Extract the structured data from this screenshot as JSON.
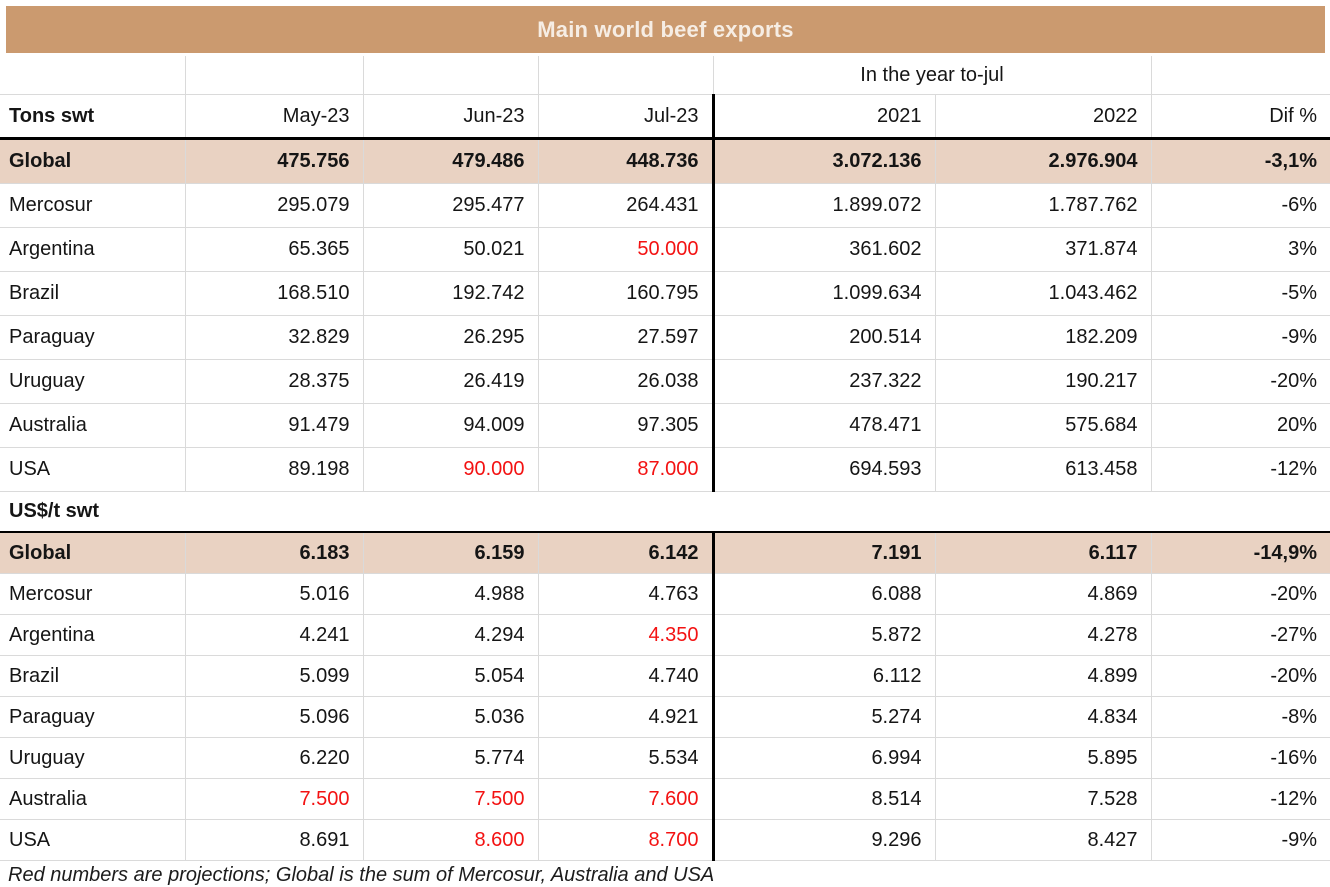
{
  "title": "Main world beef exports",
  "colors": {
    "title_bg": "#CB9A6F",
    "title_text": "#F6EDE4",
    "global_row_bg": "#E9D2C2",
    "projection_red": "#F31212",
    "gridline": "#DADADA",
    "heavy_rule": "#000000"
  },
  "table": {
    "group_header": "In the year to-jul",
    "header_row": [
      "Tons swt",
      "May-23",
      "Jun-23",
      "Jul-23",
      "2021",
      "2022",
      "Dif %"
    ],
    "sections": [
      {
        "name": "Tons swt",
        "show_label_row": false,
        "rows": [
          {
            "label": "Global",
            "row_style": "global",
            "values": [
              "475.756",
              "479.486",
              "448.736",
              "3.072.136",
              "2.976.904",
              "-3,1%"
            ],
            "red": []
          },
          {
            "label": "Mercosur",
            "row_style": "",
            "values": [
              "295.079",
              "295.477",
              "264.431",
              "1.899.072",
              "1.787.762",
              "-6%"
            ],
            "red": []
          },
          {
            "label": "Argentina",
            "row_style": "",
            "values": [
              "65.365",
              "50.021",
              "50.000",
              "361.602",
              "371.874",
              "3%"
            ],
            "red": [
              2
            ]
          },
          {
            "label": "Brazil",
            "row_style": "",
            "values": [
              "168.510",
              "192.742",
              "160.795",
              "1.099.634",
              "1.043.462",
              "-5%"
            ],
            "red": []
          },
          {
            "label": "Paraguay",
            "row_style": "",
            "values": [
              "32.829",
              "26.295",
              "27.597",
              "200.514",
              "182.209",
              "-9%"
            ],
            "red": []
          },
          {
            "label": "Uruguay",
            "row_style": "thick-bottom",
            "values": [
              "28.375",
              "26.419",
              "26.038",
              "237.322",
              "190.217",
              "-20%"
            ],
            "red": []
          },
          {
            "label": "Australia",
            "row_style": "",
            "values": [
              "91.479",
              "94.009",
              "97.305",
              "478.471",
              "575.684",
              "20%"
            ],
            "red": []
          },
          {
            "label": "USA",
            "row_style": "",
            "values": [
              "89.198",
              "90.000",
              "87.000",
              "694.593",
              "613.458",
              "-12%"
            ],
            "red": [
              1,
              2
            ]
          }
        ]
      },
      {
        "name": "US$/t swt",
        "show_label_row": true,
        "rows": [
          {
            "label": "Global",
            "row_style": "global",
            "values": [
              "6.183",
              "6.159",
              "6.142",
              "7.191",
              "6.117",
              "-14,9%"
            ],
            "red": []
          },
          {
            "label": "Mercosur",
            "row_style": "",
            "values": [
              "5.016",
              "4.988",
              "4.763",
              "6.088",
              "4.869",
              "-20%"
            ],
            "red": []
          },
          {
            "label": "Argentina",
            "row_style": "",
            "values": [
              "4.241",
              "4.294",
              "4.350",
              "5.872",
              "4.278",
              "-27%"
            ],
            "red": [
              2
            ]
          },
          {
            "label": "Brazil",
            "row_style": "",
            "values": [
              "5.099",
              "5.054",
              "4.740",
              "6.112",
              "4.899",
              "-20%"
            ],
            "red": []
          },
          {
            "label": "Paraguay",
            "row_style": "",
            "values": [
              "5.096",
              "5.036",
              "4.921",
              "5.274",
              "4.834",
              "-8%"
            ],
            "red": []
          },
          {
            "label": "Uruguay",
            "row_style": "thick-bottom",
            "values": [
              "6.220",
              "5.774",
              "5.534",
              "6.994",
              "5.895",
              "-16%"
            ],
            "red": []
          },
          {
            "label": "Australia",
            "row_style": "",
            "values": [
              "7.500",
              "7.500",
              "7.600",
              "8.514",
              "7.528",
              "-12%"
            ],
            "red": [
              0,
              1,
              2
            ]
          },
          {
            "label": "USA",
            "row_style": "table-end",
            "values": [
              "8.691",
              "8.600",
              "8.700",
              "9.296",
              "8.427",
              "-9%"
            ],
            "red": [
              1,
              2
            ]
          }
        ]
      }
    ]
  },
  "footer_note": "Red numbers are projections; Global is the sum of Mercosur, Australia and USA"
}
